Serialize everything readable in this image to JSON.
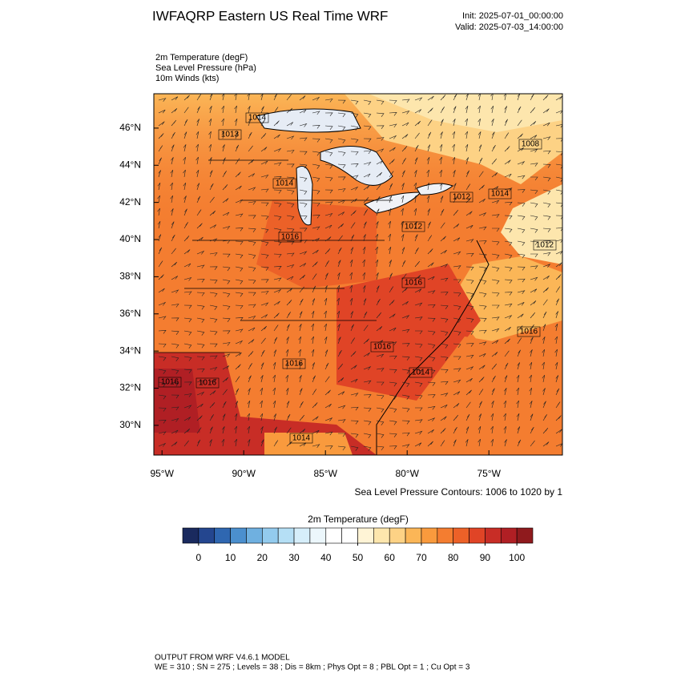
{
  "header": {
    "title": "IWFAQRP Eastern US Real Time WRF",
    "init": "Init: 2025-07-01_00:00:00",
    "valid": "Valid: 2025-07-03_14:00:00"
  },
  "fields": [
    "2m Temperature   (degF)",
    "Sea Level Pressure   (hPa)",
    "10m Winds   (kts)"
  ],
  "map": {
    "lonlim": [
      -95.5,
      -70.5
    ],
    "latlim": [
      28.4,
      47.85
    ],
    "lonticks": [
      {
        "value": -95,
        "label": "95°W"
      },
      {
        "value": -90,
        "label": "90°W"
      },
      {
        "value": -85,
        "label": "85°W"
      },
      {
        "value": -80,
        "label": "80°W"
      },
      {
        "value": -75,
        "label": "75°W"
      }
    ],
    "latticks": [
      {
        "value": 30,
        "label": "30°N"
      },
      {
        "value": 32,
        "label": "32°N"
      },
      {
        "value": 34,
        "label": "34°N"
      },
      {
        "value": 36,
        "label": "36°N"
      },
      {
        "value": 38,
        "label": "38°N"
      },
      {
        "value": 40,
        "label": "40°N"
      },
      {
        "value": 42,
        "label": "42°N"
      },
      {
        "value": 44,
        "label": "44°N"
      },
      {
        "value": 46,
        "label": "46°N"
      }
    ],
    "contour_labels": [
      1014,
      1013,
      1014,
      1016,
      1012,
      1014,
      1008,
      1012,
      1012,
      1016,
      1016,
      1016,
      1014,
      1016,
      1016,
      1016,
      1014
    ]
  },
  "contour_note": "Sea Level Pressure Contours: 1006 to 1020 by 1",
  "colorbar": {
    "title": "2m Temperature  (degF)",
    "clim": [
      -5,
      105
    ],
    "colors": [
      "#1a2a5e",
      "#24468f",
      "#2f67b1",
      "#4b8fce",
      "#6fb0e0",
      "#93cbee",
      "#b5dff5",
      "#d6eefa",
      "#ecf7fc",
      "#ffffff",
      "#ffffff",
      "#fff4d6",
      "#fde6ad",
      "#fdd285",
      "#fbb657",
      "#f99a3d",
      "#f47d30",
      "#ec6128",
      "#e04426",
      "#c82d26",
      "#b01f24",
      "#8f1a1d"
    ],
    "ticks": [
      0,
      10,
      20,
      30,
      40,
      50,
      60,
      70,
      80,
      90,
      100
    ]
  },
  "footer": [
    "OUTPUT FROM WRF V4.6.1 MODEL",
    "WE = 310 ; SN = 275 ; Levels = 38 ; Dis = 8km ; Phys Opt = 8 ; PBL Opt = 1 ; Cu Opt = 3"
  ]
}
